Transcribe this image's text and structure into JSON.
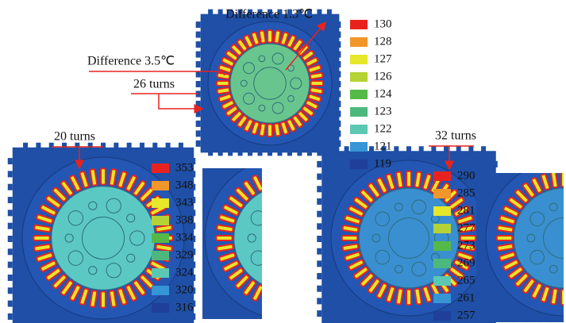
{
  "annotations": {
    "top_difference": "Difference 1.3℃",
    "mid_difference": "Difference 3.5℃",
    "top_turns": "26 turns",
    "left_turns": "20 turns",
    "right_turns": "32 turns"
  },
  "legend_colors": [
    "#e8231f",
    "#f0962a",
    "#e6e62a",
    "#b5d334",
    "#55b947",
    "#4db87d",
    "#5cc8b4",
    "#3595d5",
    "#1f3f9a"
  ],
  "legends": [
    {
      "values": [
        130,
        128,
        127,
        126,
        124,
        123,
        122,
        121,
        119
      ]
    },
    {
      "values": [
        353,
        348,
        343,
        338,
        334,
        329,
        324,
        320,
        316
      ]
    },
    {
      "values": [
        290,
        285,
        281,
        277,
        273,
        269,
        265,
        261,
        257
      ]
    }
  ]
}
